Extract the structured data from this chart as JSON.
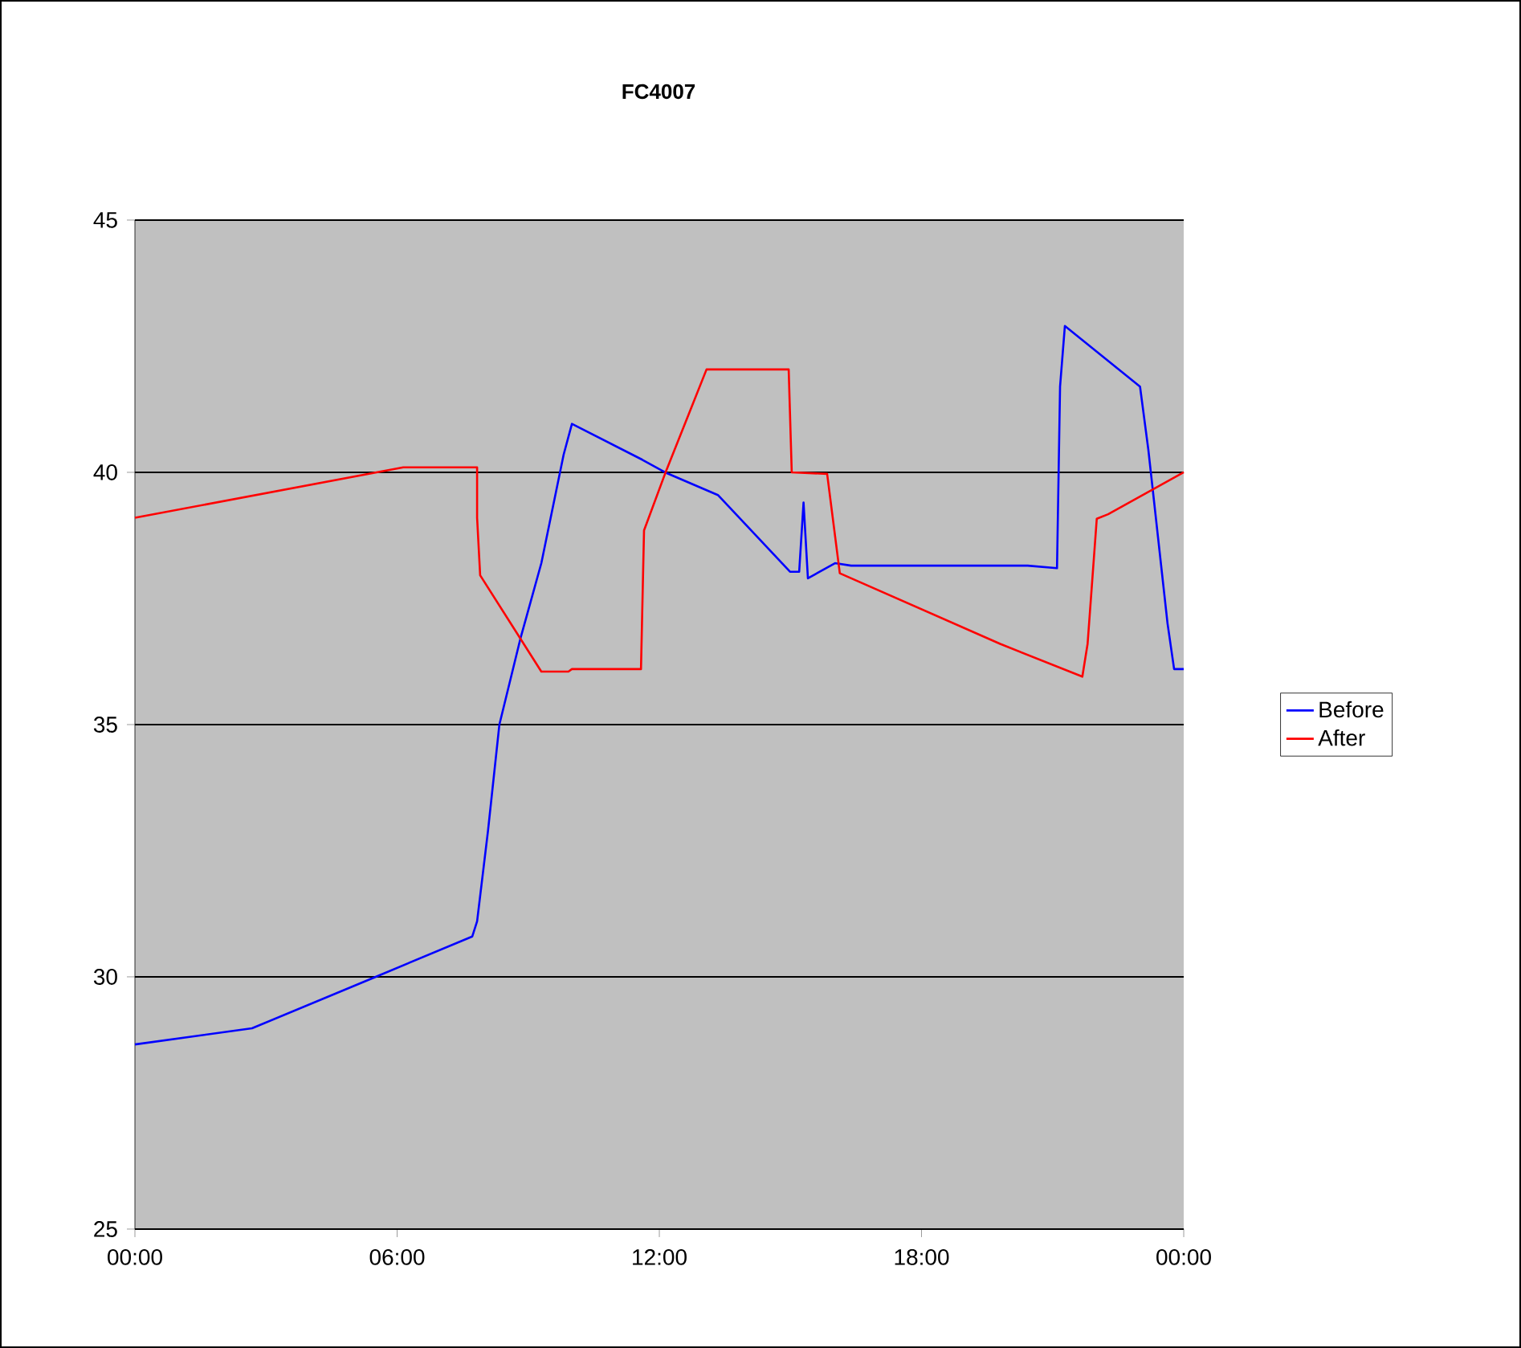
{
  "chart_data": {
    "type": "line",
    "title": "FC4007",
    "xlim": [
      0,
      24
    ],
    "xticks": [
      {
        "value": 0,
        "label": "00:00"
      },
      {
        "value": 6,
        "label": "06:00"
      },
      {
        "value": 12,
        "label": "12:00"
      },
      {
        "value": 18,
        "label": "18:00"
      },
      {
        "value": 24,
        "label": "00:00"
      }
    ],
    "ylim": [
      25,
      45
    ],
    "yticks": [
      25,
      30,
      35,
      40,
      45
    ],
    "grid": "y",
    "legend": "right",
    "series": [
      {
        "name": "Before",
        "color": "#0000ff",
        "x": [
          0,
          2.68,
          5.51,
          7.72,
          7.83,
          8.08,
          8.34,
          8.82,
          9.3,
          9.81,
          10.0,
          11.61,
          12.13,
          13.34,
          14.99,
          15.2,
          15.3,
          15.4,
          16.02,
          16.39,
          20.43,
          21.1,
          21.17,
          21.28,
          23.0,
          23.19,
          23.63,
          23.78,
          24
        ],
        "values": [
          28.66,
          28.98,
          30.0,
          30.8,
          31.1,
          32.9,
          35.0,
          36.7,
          38.2,
          40.35,
          40.96,
          40.25,
          40.0,
          39.55,
          38.03,
          38.03,
          39.4,
          37.9,
          38.2,
          38.15,
          38.15,
          38.1,
          41.7,
          42.9,
          41.7,
          40.45,
          37.0,
          36.1,
          36.1
        ]
      },
      {
        "name": "After",
        "color": "#ff0000",
        "x": [
          0,
          6.14,
          7.83,
          7.83,
          7.9,
          9.3,
          9.92,
          10.0,
          11.58,
          11.65,
          12.13,
          13.08,
          14.96,
          15.03,
          15.84,
          15.99,
          16.13,
          19.8,
          21.68,
          21.8,
          22.01,
          22.27,
          24
        ],
        "values": [
          39.1,
          40.1,
          40.1,
          39.1,
          37.96,
          36.05,
          36.05,
          36.1,
          36.1,
          38.85,
          39.97,
          42.04,
          42.04,
          40.0,
          39.97,
          38.95,
          38.0,
          36.6,
          35.95,
          36.6,
          39.08,
          39.17,
          40.0
        ]
      }
    ]
  }
}
